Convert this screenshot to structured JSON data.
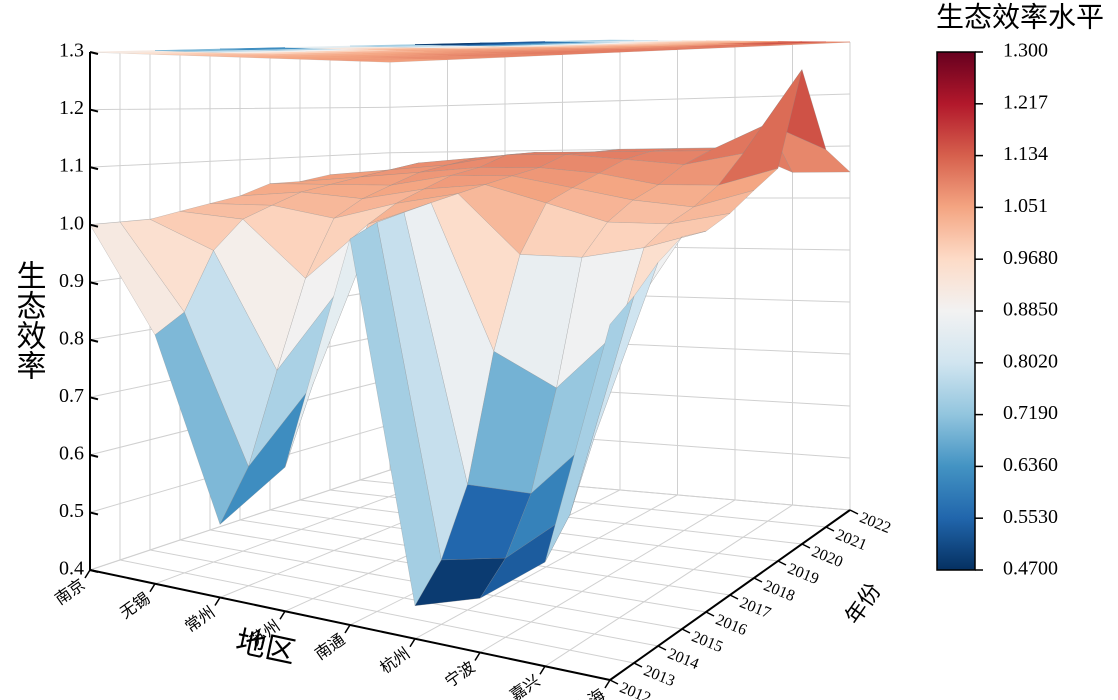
{
  "chart_data": {
    "type": "surface",
    "zlabel": "生态效率",
    "xlabel": "地区",
    "ylabel": "年份",
    "colorbar_title": "生态效率水平",
    "categories": [
      "南京",
      "无锡",
      "常州",
      "苏州",
      "南通",
      "杭州",
      "宁波",
      "嘉兴",
      "上海"
    ],
    "years": [
      2012,
      2013,
      2014,
      2015,
      2016,
      2017,
      2018,
      2019,
      2020,
      2021,
      2022
    ],
    "values": [
      [
        1.0,
        1.0,
        1.0,
        1.01,
        1.02,
        1.03,
        1.05,
        1.05,
        1.06,
        1.05,
        1.04
      ],
      [
        0.82,
        0.85,
        0.95,
        1.0,
        1.02,
        1.04,
        1.05,
        1.06,
        1.07,
        1.08,
        1.07
      ],
      [
        0.52,
        0.6,
        0.75,
        0.9,
        1.0,
        1.03,
        1.05,
        1.07,
        1.08,
        1.09,
        1.08
      ],
      [
        0.63,
        0.75,
        0.9,
        1.0,
        1.03,
        1.05,
        1.07,
        1.08,
        1.1,
        1.1,
        1.09
      ],
      [
        1.0,
        1.02,
        1.03,
        1.04,
        1.05,
        1.06,
        1.07,
        1.08,
        1.1,
        1.1,
        1.1
      ],
      [
        0.45,
        0.5,
        0.6,
        0.8,
        0.95,
        1.03,
        1.05,
        1.07,
        1.09,
        1.1,
        1.1
      ],
      [
        0.48,
        0.52,
        0.6,
        0.75,
        0.95,
        1.0,
        1.03,
        1.05,
        1.08,
        1.1,
        1.1
      ],
      [
        0.55,
        0.6,
        0.7,
        0.85,
        0.97,
        1.0,
        1.02,
        1.05,
        1.1,
        1.15,
        1.05
      ],
      [
        0.9,
        0.93,
        0.97,
        1.0,
        1.0,
        1.02,
        1.05,
        1.08,
        1.25,
        1.1,
        1.05
      ]
    ],
    "zlim": [
      0.4,
      1.3
    ],
    "zticks": [
      0.4,
      0.5,
      0.6,
      0.7,
      0.8,
      0.9,
      {
        "value": 1.0,
        "label": "1.0"
      },
      1.1,
      1.2,
      1.3
    ],
    "clim": [
      0.47,
      1.3
    ],
    "cticks": [
      {
        "value": 1.3,
        "label": "1.300"
      },
      1.217,
      1.134,
      1.051,
      {
        "value": 0.968,
        "label": "0.9680"
      },
      {
        "value": 0.885,
        "label": "0.8850"
      },
      {
        "value": 0.802,
        "label": "0.8020"
      },
      {
        "value": 0.719,
        "label": "0.7190"
      },
      {
        "value": 0.636,
        "label": "0.6360"
      },
      {
        "value": 0.553,
        "label": "0.5530"
      },
      {
        "value": 0.47,
        "label": "0.4700"
      }
    ],
    "colormap": [
      "#053061",
      "#2166ac",
      "#4393c3",
      "#92c5de",
      "#d1e5f0",
      "#f2f2f2",
      "#fddbc7",
      "#f4a582",
      "#d6604d",
      "#b2182b",
      "#67001f"
    ],
    "grid": true
  }
}
